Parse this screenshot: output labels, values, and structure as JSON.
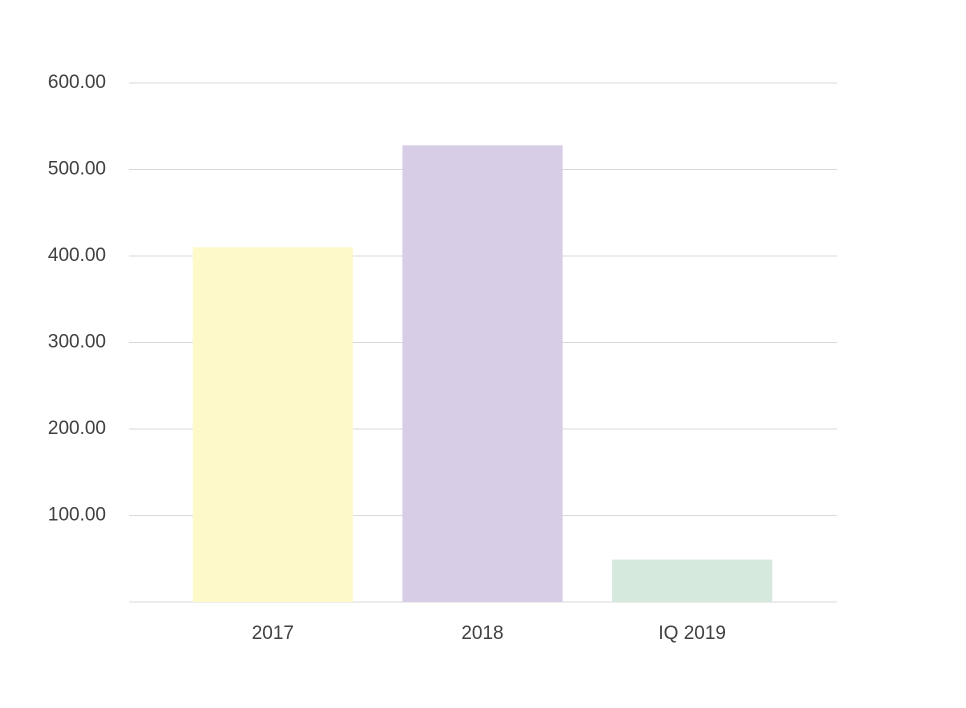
{
  "chart_data": {
    "type": "bar",
    "categories": [
      "2017",
      "2018",
      "IQ 2019"
    ],
    "values": [
      410,
      528,
      49
    ],
    "colors": [
      "#fdf9c8",
      "#d7cde6",
      "#d5eadc"
    ],
    "ylim": [
      0,
      600
    ],
    "yticks": [
      {
        "value": 100,
        "label": "100.00"
      },
      {
        "value": 200,
        "label": "200.00"
      },
      {
        "value": 300,
        "label": "300.00"
      },
      {
        "value": 400,
        "label": "400.00"
      },
      {
        "value": 500,
        "label": "500.00"
      },
      {
        "value": 600,
        "label": "600.00"
      }
    ],
    "grid": true
  }
}
